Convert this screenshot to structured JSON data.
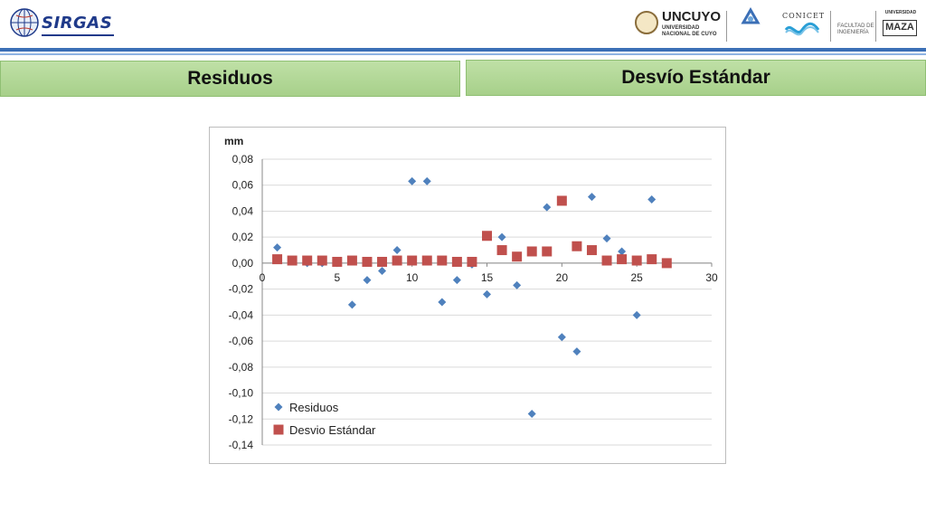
{
  "header": {
    "left_logo_text": "SIRGAS",
    "uncuyo_title": "UNCUYO",
    "uncuyo_sub1": "UNIVERSIDAD",
    "uncuyo_sub2": "NACIONAL DE CUYO",
    "conicet": "CONICET",
    "fac_ing_1": "FACULTAD DE",
    "fac_ing_2": "INGENIERÍA",
    "maza_univ": "UNIVERSIDAD",
    "maza": "MAZA"
  },
  "panels": {
    "left_title": "Residuos",
    "right_title": "Desvío Estándar"
  },
  "colors": {
    "residuos": "#4f81bd",
    "desvio": "#c0504d",
    "grid": "#d9d9d9"
  },
  "chart_data": {
    "type": "scatter",
    "ylabel": "mm",
    "xlim": [
      0,
      30
    ],
    "ylim": [
      -0.14,
      0.08
    ],
    "x_ticks": [
      "0",
      "5",
      "10",
      "15",
      "20",
      "25",
      "30"
    ],
    "y_ticks": [
      "0,08",
      "0,06",
      "0,04",
      "0,02",
      "0,00",
      "-0,02",
      "-0,04",
      "-0,06",
      "-0,08",
      "-0,10",
      "-0,12",
      "-0,14"
    ],
    "grid": true,
    "legend_position": "bottom-left",
    "series": [
      {
        "name": "Residuos",
        "marker": "diamond",
        "x": [
          1,
          2,
          3,
          4,
          5,
          6,
          7,
          8,
          9,
          10,
          11,
          12,
          13,
          14,
          15,
          16,
          17,
          18,
          19,
          20,
          21,
          22,
          23,
          24,
          25,
          26
        ],
        "y": [
          0.012,
          0.002,
          0.0,
          0.0,
          0.0,
          -0.032,
          -0.013,
          -0.006,
          0.01,
          0.063,
          0.063,
          -0.03,
          -0.013,
          -0.001,
          -0.024,
          0.02,
          -0.017,
          -0.116,
          0.043,
          -0.057,
          -0.068,
          0.051,
          0.019,
          0.009,
          -0.04,
          0.049
        ]
      },
      {
        "name": "Desvio Estándar",
        "marker": "square",
        "x": [
          1,
          2,
          3,
          4,
          5,
          6,
          7,
          8,
          9,
          10,
          11,
          12,
          13,
          14,
          15,
          16,
          17,
          18,
          19,
          20,
          21,
          22,
          23,
          24,
          25,
          26,
          27
        ],
        "y": [
          0.003,
          0.002,
          0.002,
          0.002,
          0.001,
          0.002,
          0.001,
          0.001,
          0.002,
          0.002,
          0.002,
          0.002,
          0.001,
          0.001,
          0.021,
          0.01,
          0.005,
          0.009,
          0.009,
          0.048,
          0.013,
          0.01,
          0.002,
          0.003,
          0.002,
          0.003,
          0.0
        ]
      }
    ]
  }
}
